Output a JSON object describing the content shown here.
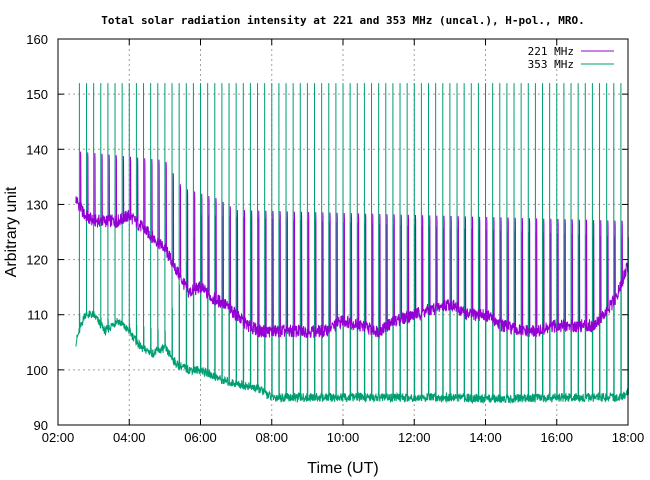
{
  "chart_data": {
    "type": "line",
    "title": "Total solar radiation intensity at 221 and 353 MHz (uncal.), H-pol., MRO.",
    "xlabel": "Time (UT)",
    "ylabel": "Arbitrary unit",
    "xlim": [
      "02:00",
      "18:00"
    ],
    "ylim": [
      90,
      160
    ],
    "x_ticks": [
      "02:00",
      "04:00",
      "06:00",
      "08:00",
      "10:00",
      "12:00",
      "14:00",
      "16:00",
      "18:00"
    ],
    "y_ticks": [
      90,
      100,
      110,
      120,
      130,
      140,
      150,
      160
    ],
    "grid": true,
    "legend_position": "top-right",
    "series": [
      {
        "name": "221 MHz",
        "color": "#9400d3",
        "x": [
          "02:30",
          "02:45",
          "03:00",
          "03:20",
          "03:40",
          "04:00",
          "04:20",
          "04:40",
          "05:00",
          "05:20",
          "05:40",
          "06:00",
          "06:20",
          "06:40",
          "07:00",
          "07:20",
          "07:40",
          "08:00",
          "08:30",
          "09:00",
          "09:30",
          "10:00",
          "10:30",
          "11:00",
          "11:30",
          "12:00",
          "12:30",
          "13:00",
          "13:30",
          "14:00",
          "14:30",
          "15:00",
          "15:30",
          "16:00",
          "16:30",
          "17:00",
          "17:20",
          "17:40",
          "18:00"
        ],
        "values": [
          131,
          128,
          127,
          127,
          127,
          128,
          126,
          124,
          122,
          118,
          114,
          115,
          113,
          112,
          110,
          108,
          107,
          107,
          107,
          107,
          107,
          109,
          108,
          107,
          109,
          110,
          111,
          112,
          110,
          110,
          108,
          107,
          107,
          108,
          108,
          108,
          110,
          113,
          119
        ],
        "spikes": {
          "start": "02:38",
          "interval_minutes": 12,
          "peaks": [
            [
              "02:00",
              140
            ],
            [
              "05:00",
              138
            ],
            [
              "05:30",
              133
            ],
            [
              "06:30",
              131
            ],
            [
              "07:00",
              129
            ],
            [
              "18:00",
              127
            ]
          ]
        }
      },
      {
        "name": "353 MHz",
        "color": "#009e73",
        "x": [
          "02:30",
          "02:45",
          "03:00",
          "03:20",
          "03:40",
          "04:00",
          "04:20",
          "04:40",
          "05:00",
          "05:20",
          "05:40",
          "06:00",
          "06:20",
          "06:40",
          "07:00",
          "07:20",
          "07:40",
          "08:00",
          "08:30",
          "09:00",
          "10:00",
          "11:00",
          "12:00",
          "13:00",
          "14:00",
          "15:00",
          "16:00",
          "16:30",
          "17:00",
          "17:30",
          "17:50",
          "18:00"
        ],
        "values": [
          105,
          110,
          110,
          107,
          109,
          107,
          104,
          103,
          104,
          101,
          100,
          100,
          99,
          98,
          97.5,
          97,
          96.5,
          95,
          95,
          95,
          95,
          95,
          95,
          95,
          94.8,
          94.8,
          95,
          95,
          95,
          95,
          95,
          96
        ],
        "spikes": {
          "start": "02:36",
          "interval_minutes": 12,
          "peaks": [
            [
              "02:00",
              152
            ],
            [
              "18:00",
              152
            ]
          ],
          "plateau_peaks": [
            [
              "02:00",
              111
            ],
            [
              "05:00",
              107
            ],
            [
              "06:00",
              128
            ],
            [
              "18:00",
              124
            ]
          ]
        }
      }
    ]
  }
}
